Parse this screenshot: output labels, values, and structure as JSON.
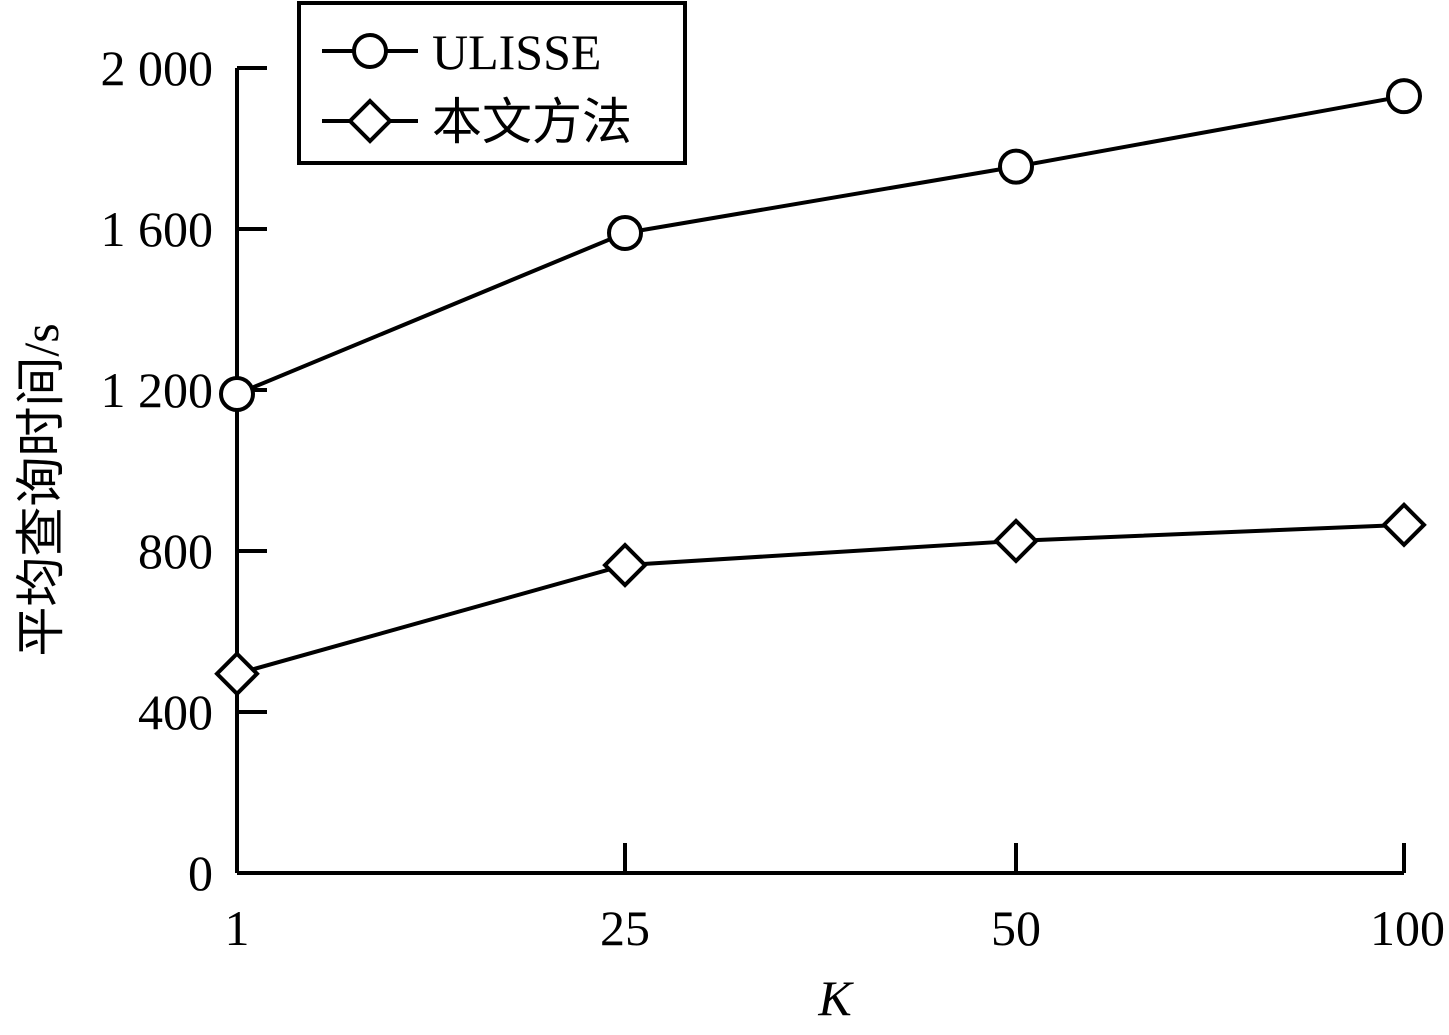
{
  "chart_data": {
    "type": "line",
    "x": [
      1,
      25,
      50,
      100
    ],
    "x_tick_labels": [
      "1",
      "25",
      "50",
      "100"
    ],
    "xlabel": "K",
    "ylabel": "平均查询时间/s",
    "ylim": [
      0,
      2000
    ],
    "y_ticks": [
      0,
      400,
      800,
      1200,
      1600,
      2000
    ],
    "y_tick_labels": [
      "0",
      "400",
      "800",
      "1 200",
      "1 600",
      "2 000"
    ],
    "grid": false,
    "legend_position": "top-left",
    "series": [
      {
        "name": "ULISSE",
        "marker": "circle",
        "values": [
          1190,
          1590,
          1755,
          1930
        ]
      },
      {
        "name": "本文方法",
        "marker": "diamond",
        "values": [
          495,
          765,
          825,
          865
        ]
      }
    ]
  }
}
